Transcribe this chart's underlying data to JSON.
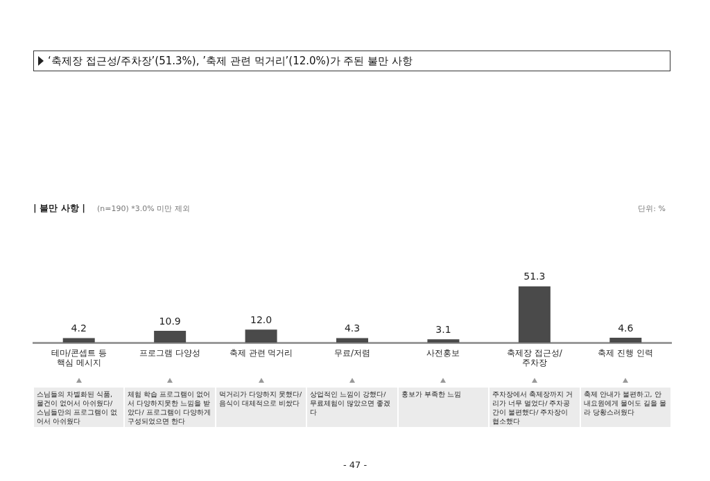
{
  "chart_data": {
    "type": "bar",
    "title": "‘축제장 접근성/주차장’(51.3%), ’축제 관련 먹거리’(12.0%)가 주된 불만 사항",
    "subtitle": "| 불만 사항 |",
    "categories": [
      "테마/콘셉트 등 핵심 메시지",
      "프로그램 다양성",
      "축제 관련 먹거리",
      "무료/저렴",
      "사전홍보",
      "축제장 접근성/ 주차장",
      "축제 진행 인력"
    ],
    "values": [
      4.2,
      10.9,
      12.0,
      4.3,
      3.1,
      51.3,
      4.6
    ],
    "value_labels": [
      "4.2",
      "10.9",
      "12.0",
      "4.3",
      "3.1",
      "51.3",
      "4.6"
    ],
    "color": "#4a4a4a",
    "tick_labels": "x",
    "grid": false,
    "annotations": [
      "(n=190) *3.0% 미만 제외",
      "단위: %",
      "- 47 -",
      "스님들의 차별화된 식품, 물건이 없어서 아쉬웠다/ 스님들만의 프로그램이 없어서 아쉬웠다",
      "체험 학습 프로그램이 없어서 다양하지못한 느낌을 받았다/ 프로그램이 다양하게 구성되었으면 한다",
      "먹거리가 다양하지 못했다/ 음식이 대체적으로 비쌌다",
      "상업적인 느낌이 강했다/ 무료체험이 많았으면 좋겠다",
      "홍보가 부족한 느낌",
      "주차장에서 축제장까지 거리가 너무 멀었다/ 주차공간이 불편했다/ 주차장이 협소했다",
      "축제 안내가 불편하고, 안내요원에게 물어도 길을 몰라 당황스러웠다"
    ]
  }
}
